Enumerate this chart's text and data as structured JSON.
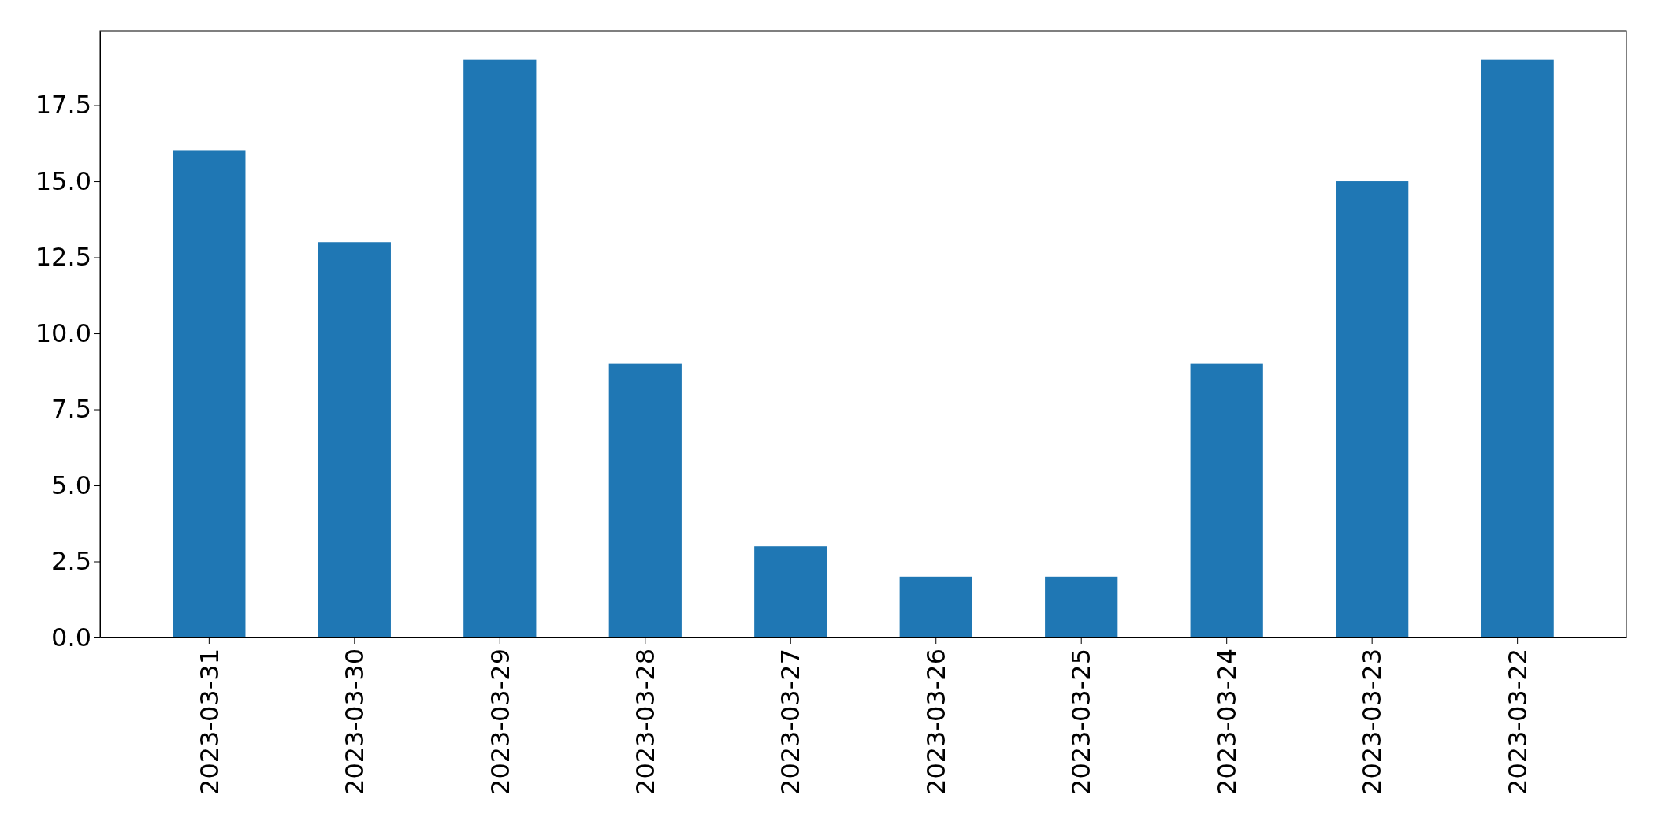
{
  "chart_data": {
    "type": "bar",
    "categories": [
      "2023-03-31",
      "2023-03-30",
      "2023-03-29",
      "2023-03-28",
      "2023-03-27",
      "2023-03-26",
      "2023-03-25",
      "2023-03-24",
      "2023-03-23",
      "2023-03-22"
    ],
    "values": [
      16,
      13,
      19,
      9,
      3,
      2,
      2,
      9,
      15,
      19
    ],
    "color": "#1f77b4",
    "ylim": [
      0,
      19.95
    ],
    "yticks": [
      {
        "value": 0,
        "label": "0.0"
      },
      {
        "value": 2.5,
        "label": "2.5"
      },
      {
        "value": 5,
        "label": "5.0"
      },
      {
        "value": 7.5,
        "label": "7.5"
      },
      {
        "value": 10,
        "label": "10.0"
      },
      {
        "value": 12.5,
        "label": "12.5"
      },
      {
        "value": 15,
        "label": "15.0"
      },
      {
        "value": 17.5,
        "label": "17.5"
      }
    ],
    "grid": false
  }
}
